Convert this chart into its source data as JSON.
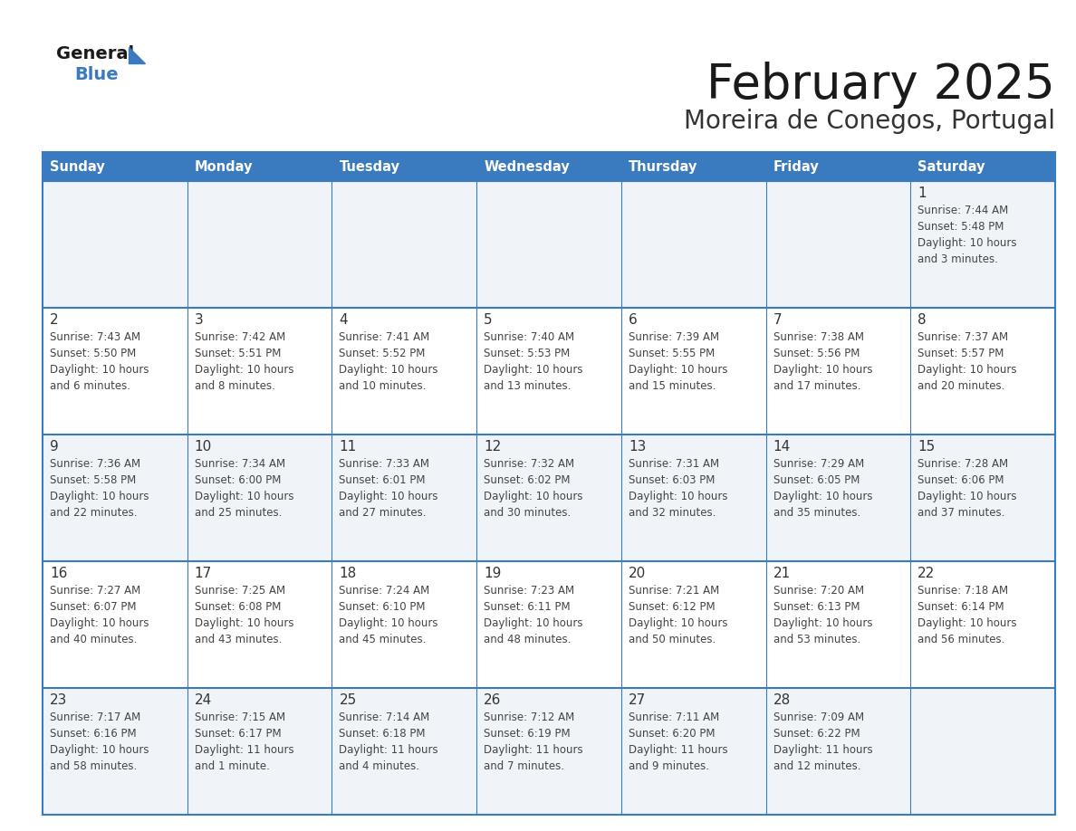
{
  "title": "February 2025",
  "subtitle": "Moreira de Conegos, Portugal",
  "days_of_week": [
    "Sunday",
    "Monday",
    "Tuesday",
    "Wednesday",
    "Thursday",
    "Friday",
    "Saturday"
  ],
  "header_bg": "#3a7abf",
  "header_text_color": "#ffffff",
  "cell_bg_light": "#f0f4f8",
  "cell_bg_white": "#ffffff",
  "border_color": "#3a7abf",
  "day_number_color": "#333333",
  "text_color": "#444444",
  "title_color": "#1a1a1a",
  "subtitle_color": "#333333",
  "logo_general_color": "#1a1a1a",
  "logo_blue_color": "#3a7abf",
  "calendar_data": [
    [
      null,
      null,
      null,
      null,
      null,
      null,
      "1\nSunrise: 7:44 AM\nSunset: 5:48 PM\nDaylight: 10 hours\nand 3 minutes."
    ],
    [
      "2\nSunrise: 7:43 AM\nSunset: 5:50 PM\nDaylight: 10 hours\nand 6 minutes.",
      "3\nSunrise: 7:42 AM\nSunset: 5:51 PM\nDaylight: 10 hours\nand 8 minutes.",
      "4\nSunrise: 7:41 AM\nSunset: 5:52 PM\nDaylight: 10 hours\nand 10 minutes.",
      "5\nSunrise: 7:40 AM\nSunset: 5:53 PM\nDaylight: 10 hours\nand 13 minutes.",
      "6\nSunrise: 7:39 AM\nSunset: 5:55 PM\nDaylight: 10 hours\nand 15 minutes.",
      "7\nSunrise: 7:38 AM\nSunset: 5:56 PM\nDaylight: 10 hours\nand 17 minutes.",
      "8\nSunrise: 7:37 AM\nSunset: 5:57 PM\nDaylight: 10 hours\nand 20 minutes."
    ],
    [
      "9\nSunrise: 7:36 AM\nSunset: 5:58 PM\nDaylight: 10 hours\nand 22 minutes.",
      "10\nSunrise: 7:34 AM\nSunset: 6:00 PM\nDaylight: 10 hours\nand 25 minutes.",
      "11\nSunrise: 7:33 AM\nSunset: 6:01 PM\nDaylight: 10 hours\nand 27 minutes.",
      "12\nSunrise: 7:32 AM\nSunset: 6:02 PM\nDaylight: 10 hours\nand 30 minutes.",
      "13\nSunrise: 7:31 AM\nSunset: 6:03 PM\nDaylight: 10 hours\nand 32 minutes.",
      "14\nSunrise: 7:29 AM\nSunset: 6:05 PM\nDaylight: 10 hours\nand 35 minutes.",
      "15\nSunrise: 7:28 AM\nSunset: 6:06 PM\nDaylight: 10 hours\nand 37 minutes."
    ],
    [
      "16\nSunrise: 7:27 AM\nSunset: 6:07 PM\nDaylight: 10 hours\nand 40 minutes.",
      "17\nSunrise: 7:25 AM\nSunset: 6:08 PM\nDaylight: 10 hours\nand 43 minutes.",
      "18\nSunrise: 7:24 AM\nSunset: 6:10 PM\nDaylight: 10 hours\nand 45 minutes.",
      "19\nSunrise: 7:23 AM\nSunset: 6:11 PM\nDaylight: 10 hours\nand 48 minutes.",
      "20\nSunrise: 7:21 AM\nSunset: 6:12 PM\nDaylight: 10 hours\nand 50 minutes.",
      "21\nSunrise: 7:20 AM\nSunset: 6:13 PM\nDaylight: 10 hours\nand 53 minutes.",
      "22\nSunrise: 7:18 AM\nSunset: 6:14 PM\nDaylight: 10 hours\nand 56 minutes."
    ],
    [
      "23\nSunrise: 7:17 AM\nSunset: 6:16 PM\nDaylight: 10 hours\nand 58 minutes.",
      "24\nSunrise: 7:15 AM\nSunset: 6:17 PM\nDaylight: 11 hours\nand 1 minute.",
      "25\nSunrise: 7:14 AM\nSunset: 6:18 PM\nDaylight: 11 hours\nand 4 minutes.",
      "26\nSunrise: 7:12 AM\nSunset: 6:19 PM\nDaylight: 11 hours\nand 7 minutes.",
      "27\nSunrise: 7:11 AM\nSunset: 6:20 PM\nDaylight: 11 hours\nand 9 minutes.",
      "28\nSunrise: 7:09 AM\nSunset: 6:22 PM\nDaylight: 11 hours\nand 12 minutes.",
      null
    ]
  ]
}
